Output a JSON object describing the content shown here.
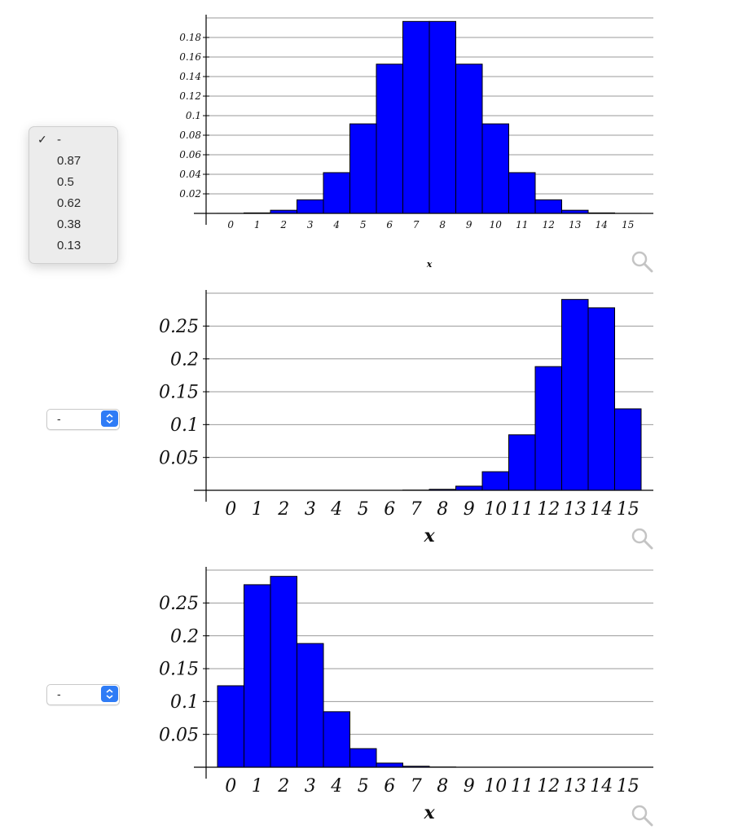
{
  "chart_data": [
    {
      "type": "bar",
      "categories": [
        "0",
        "1",
        "2",
        "3",
        "4",
        "5",
        "6",
        "7",
        "8",
        "9",
        "10",
        "11",
        "12",
        "13",
        "14",
        "15"
      ],
      "values": [
        2e-05,
        0.0005,
        0.0032,
        0.0139,
        0.0417,
        0.0916,
        0.1527,
        0.1964,
        0.1964,
        0.1527,
        0.0916,
        0.0417,
        0.0139,
        0.0032,
        0.0005,
        2e-05
      ],
      "xlabel": "x",
      "ylabel": "",
      "ylim": [
        0,
        0.2
      ],
      "yticks": [
        "0.02",
        "0.04",
        "0.06",
        "0.08",
        "0.1",
        "0.12",
        "0.14",
        "0.16",
        "0.18"
      ],
      "grid": true
    },
    {
      "type": "bar",
      "categories": [
        "0",
        "1",
        "2",
        "3",
        "4",
        "5",
        "6",
        "7",
        "8",
        "9",
        "10",
        "11",
        "12",
        "13",
        "14",
        "15"
      ],
      "values": [
        0,
        0,
        0,
        0,
        0,
        0,
        0,
        0.0003,
        0.0015,
        0.0063,
        0.0283,
        0.0845,
        0.1883,
        0.2905,
        0.2778,
        0.124
      ],
      "xlabel": "x",
      "ylabel": "",
      "ylim": [
        0,
        0.3
      ],
      "yticks": [
        "0.05",
        "0.1",
        "0.15",
        "0.2",
        "0.25"
      ],
      "grid": true
    },
    {
      "type": "bar",
      "categories": [
        "0",
        "1",
        "2",
        "3",
        "4",
        "5",
        "6",
        "7",
        "8",
        "9",
        "10",
        "11",
        "12",
        "13",
        "14",
        "15"
      ],
      "values": [
        0.124,
        0.2778,
        0.2905,
        0.1883,
        0.0845,
        0.0283,
        0.0063,
        0.0015,
        0.0003,
        0,
        0,
        0,
        0,
        0,
        0,
        0
      ],
      "xlabel": "x",
      "ylabel": "",
      "ylim": [
        0,
        0.3
      ],
      "yticks": [
        "0.05",
        "0.1",
        "0.15",
        "0.2",
        "0.25"
      ],
      "grid": true
    }
  ],
  "colors": {
    "bar_fill": "#0000ff",
    "bar_stroke": "#000000",
    "grid": "#9a9a9a",
    "accent": "#2f7cf6"
  },
  "selects": [
    {
      "value": "-",
      "open": true,
      "options": [
        "-",
        "0.87",
        "0.5",
        "0.62",
        "0.38",
        "0.13"
      ],
      "selected_index": 0
    },
    {
      "value": "-"
    },
    {
      "value": "-"
    }
  ],
  "icons": {
    "zoom": "magnifier-icon",
    "checkmark": "✓"
  }
}
